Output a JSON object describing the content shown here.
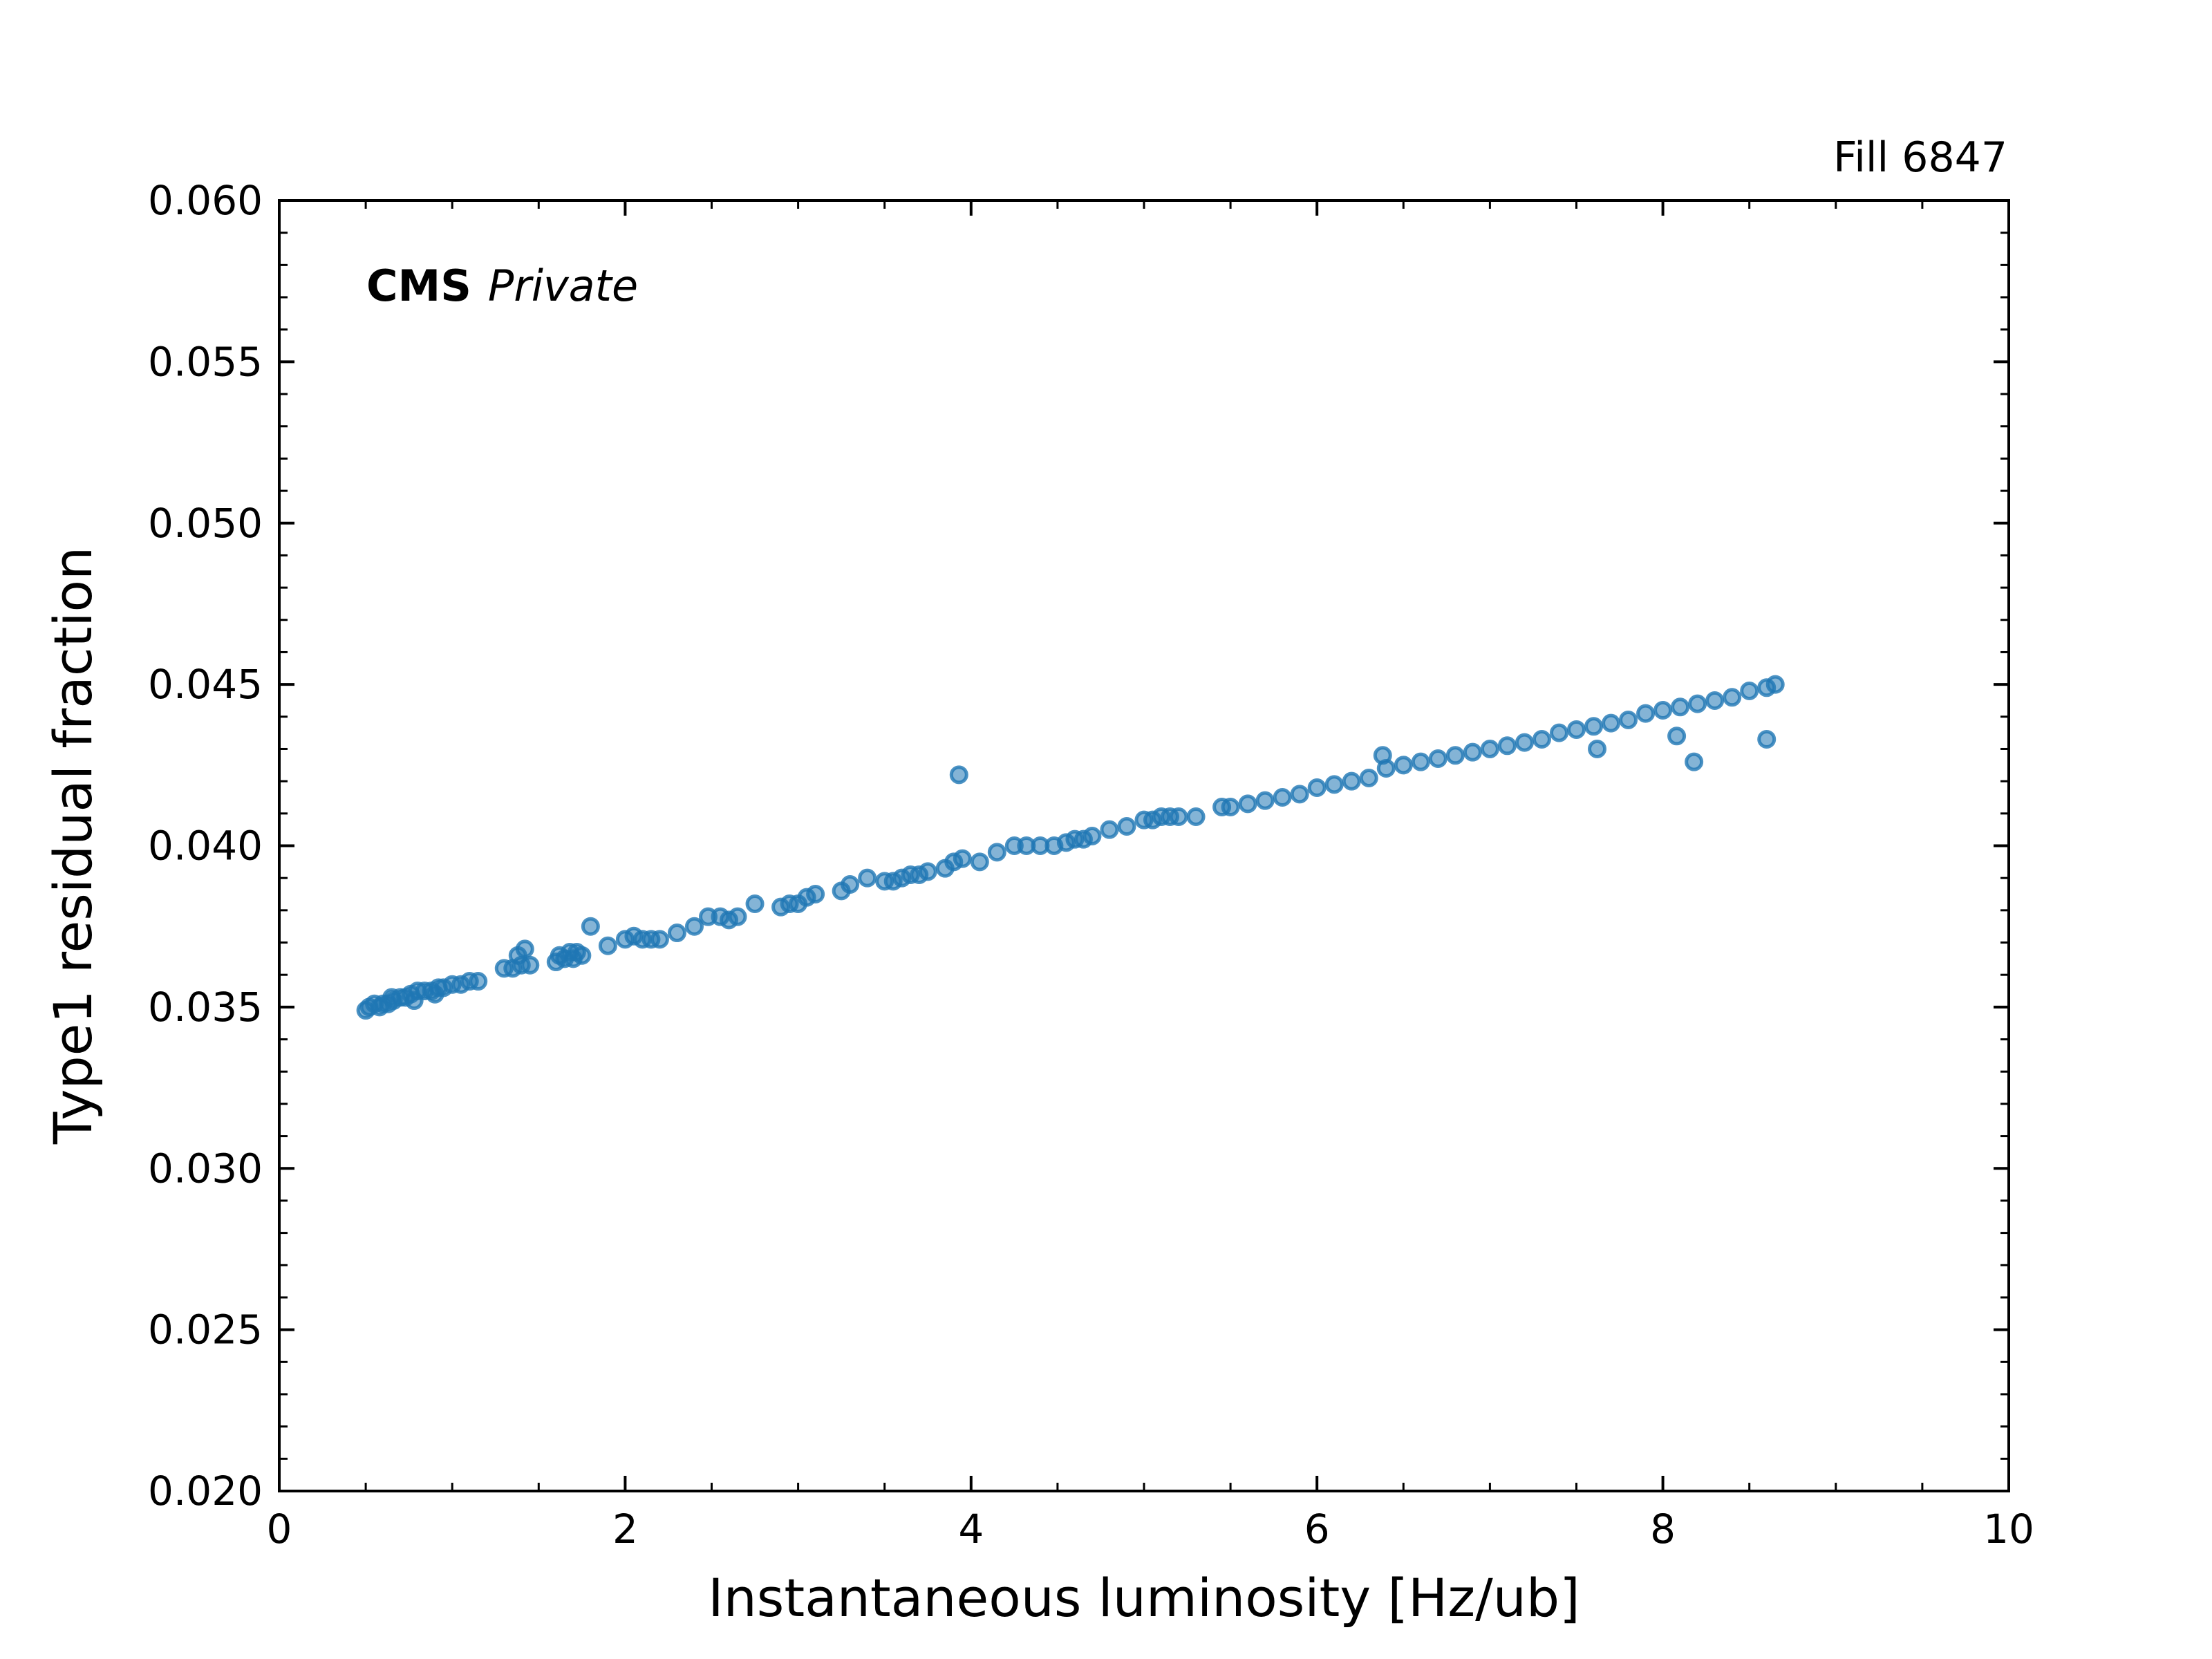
{
  "chart_data": {
    "type": "scatter",
    "title": "",
    "fill_label": "Fill 6847",
    "brand": {
      "bold": "CMS",
      "italic": "Private"
    },
    "xlabel": "Instantaneous luminosity [Hz/ub]",
    "ylabel": "Type1 residual fraction",
    "xlim": [
      0,
      10
    ],
    "ylim": [
      0.02,
      0.06
    ],
    "x_ticks": [
      0,
      2,
      4,
      6,
      8,
      10
    ],
    "x_tick_labels": [
      "0",
      "2",
      "4",
      "6",
      "8",
      "10"
    ],
    "y_ticks": [
      0.02,
      0.025,
      0.03,
      0.035,
      0.04,
      0.045,
      0.05,
      0.055,
      0.06
    ],
    "y_tick_labels": [
      "0.020",
      "0.025",
      "0.030",
      "0.035",
      "0.040",
      "0.045",
      "0.050",
      "0.055",
      "0.060"
    ],
    "grid": false,
    "series_color": "#1f77b4",
    "points": [
      [
        0.5,
        0.0349
      ],
      [
        0.52,
        0.035
      ],
      [
        0.55,
        0.0351
      ],
      [
        0.58,
        0.035
      ],
      [
        0.6,
        0.0351
      ],
      [
        0.63,
        0.0351
      ],
      [
        0.66,
        0.0352
      ],
      [
        0.7,
        0.0353
      ],
      [
        0.73,
        0.0353
      ],
      [
        0.76,
        0.0354
      ],
      [
        0.8,
        0.0355
      ],
      [
        0.84,
        0.0355
      ],
      [
        0.88,
        0.0355
      ],
      [
        0.92,
        0.0356
      ],
      [
        0.95,
        0.0356
      ],
      [
        1.0,
        0.0357
      ],
      [
        1.05,
        0.0357
      ],
      [
        1.1,
        0.0358
      ],
      [
        1.15,
        0.0358
      ],
      [
        0.78,
        0.0352
      ],
      [
        0.9,
        0.0354
      ],
      [
        0.65,
        0.0353
      ],
      [
        1.3,
        0.0362
      ],
      [
        1.35,
        0.0362
      ],
      [
        1.4,
        0.0363
      ],
      [
        1.45,
        0.0363
      ],
      [
        1.38,
        0.0366
      ],
      [
        1.42,
        0.0368
      ],
      [
        1.6,
        0.0364
      ],
      [
        1.65,
        0.0365
      ],
      [
        1.7,
        0.0365
      ],
      [
        1.75,
        0.0366
      ],
      [
        1.62,
        0.0366
      ],
      [
        1.68,
        0.0367
      ],
      [
        1.72,
        0.0367
      ],
      [
        1.8,
        0.0375
      ],
      [
        1.9,
        0.0369
      ],
      [
        2.0,
        0.0371
      ],
      [
        2.05,
        0.0372
      ],
      [
        2.1,
        0.0371
      ],
      [
        2.15,
        0.0371
      ],
      [
        2.2,
        0.0371
      ],
      [
        2.3,
        0.0373
      ],
      [
        2.4,
        0.0375
      ],
      [
        2.48,
        0.0378
      ],
      [
        2.55,
        0.0378
      ],
      [
        2.6,
        0.0377
      ],
      [
        2.65,
        0.0378
      ],
      [
        2.75,
        0.0382
      ],
      [
        2.9,
        0.0381
      ],
      [
        2.95,
        0.0382
      ],
      [
        3.0,
        0.0382
      ],
      [
        3.05,
        0.0384
      ],
      [
        3.1,
        0.0385
      ],
      [
        3.25,
        0.0386
      ],
      [
        3.3,
        0.0388
      ],
      [
        3.4,
        0.039
      ],
      [
        3.5,
        0.0389
      ],
      [
        3.55,
        0.0389
      ],
      [
        3.6,
        0.039
      ],
      [
        3.65,
        0.0391
      ],
      [
        3.7,
        0.0391
      ],
      [
        3.75,
        0.0392
      ],
      [
        3.85,
        0.0393
      ],
      [
        3.9,
        0.0395
      ],
      [
        3.95,
        0.0396
      ],
      [
        3.93,
        0.0422
      ],
      [
        4.05,
        0.0395
      ],
      [
        4.15,
        0.0398
      ],
      [
        4.25,
        0.04
      ],
      [
        4.32,
        0.04
      ],
      [
        4.4,
        0.04
      ],
      [
        4.48,
        0.04
      ],
      [
        4.55,
        0.0401
      ],
      [
        4.6,
        0.0402
      ],
      [
        4.65,
        0.0402
      ],
      [
        4.7,
        0.0403
      ],
      [
        4.8,
        0.0405
      ],
      [
        4.9,
        0.0406
      ],
      [
        5.0,
        0.0408
      ],
      [
        5.05,
        0.0408
      ],
      [
        5.1,
        0.0409
      ],
      [
        5.15,
        0.0409
      ],
      [
        5.2,
        0.0409
      ],
      [
        5.3,
        0.0409
      ],
      [
        5.45,
        0.0412
      ],
      [
        5.5,
        0.0412
      ],
      [
        5.6,
        0.0413
      ],
      [
        5.7,
        0.0414
      ],
      [
        5.8,
        0.0415
      ],
      [
        5.9,
        0.0416
      ],
      [
        6.0,
        0.0418
      ],
      [
        6.1,
        0.0419
      ],
      [
        6.2,
        0.042
      ],
      [
        6.3,
        0.0421
      ],
      [
        6.4,
        0.0424
      ],
      [
        6.38,
        0.0428
      ],
      [
        6.5,
        0.0425
      ],
      [
        6.6,
        0.0426
      ],
      [
        6.7,
        0.0427
      ],
      [
        6.8,
        0.0428
      ],
      [
        6.9,
        0.0429
      ],
      [
        7.0,
        0.043
      ],
      [
        7.1,
        0.0431
      ],
      [
        7.2,
        0.0432
      ],
      [
        7.3,
        0.0433
      ],
      [
        7.4,
        0.0435
      ],
      [
        7.5,
        0.0436
      ],
      [
        7.6,
        0.0437
      ],
      [
        7.7,
        0.0438
      ],
      [
        7.8,
        0.0439
      ],
      [
        7.9,
        0.0441
      ],
      [
        8.0,
        0.0442
      ],
      [
        8.1,
        0.0443
      ],
      [
        8.2,
        0.0444
      ],
      [
        8.3,
        0.0445
      ],
      [
        8.4,
        0.0446
      ],
      [
        8.5,
        0.0448
      ],
      [
        8.6,
        0.0449
      ],
      [
        8.65,
        0.045
      ],
      [
        7.62,
        0.043
      ],
      [
        8.08,
        0.0434
      ],
      [
        8.18,
        0.0426
      ],
      [
        8.6,
        0.0433
      ]
    ]
  }
}
